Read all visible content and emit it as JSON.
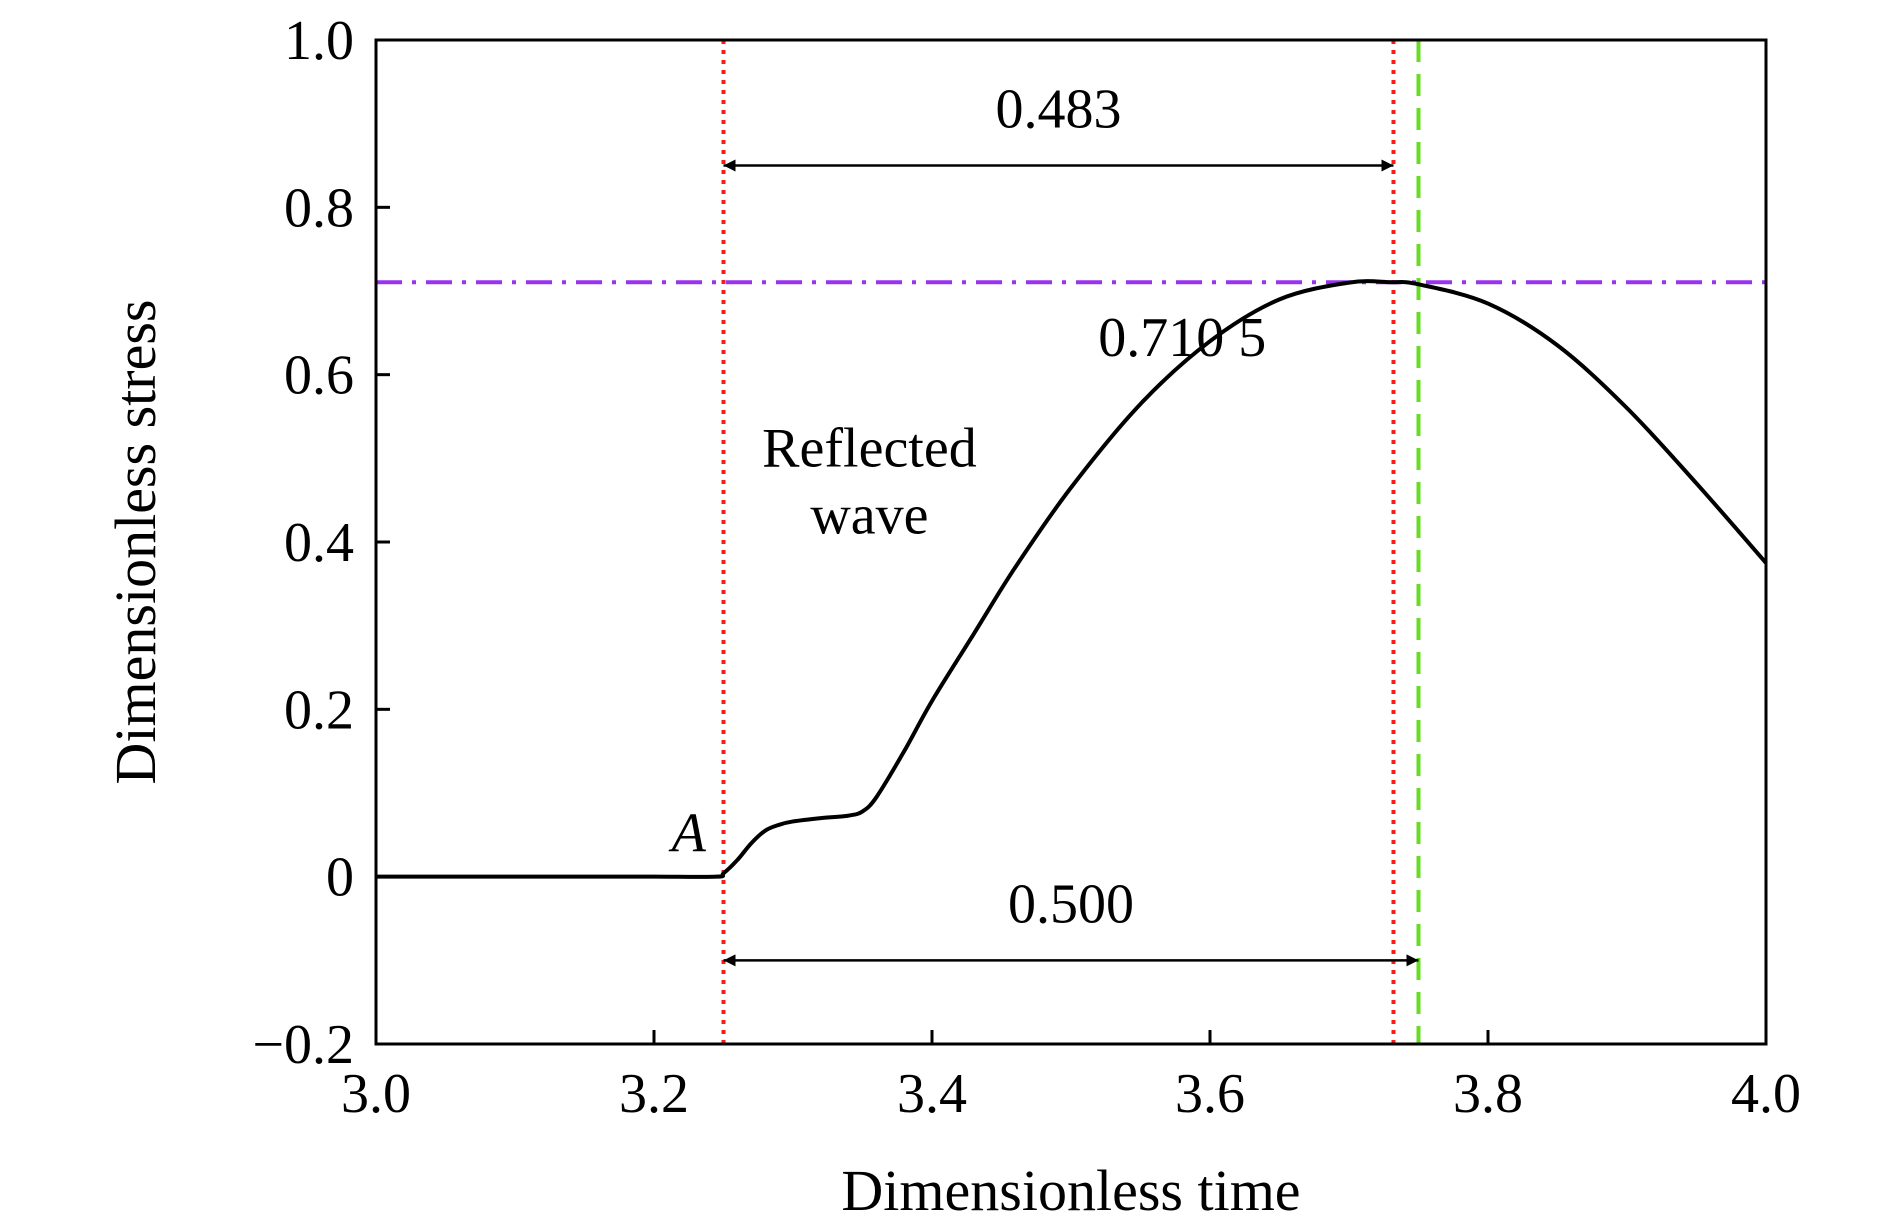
{
  "chart_data": {
    "type": "line",
    "xlabel": "Dimensionless time",
    "ylabel": "Dimensionless stress",
    "xlim": [
      3.0,
      4.0
    ],
    "ylim": [
      -0.2,
      1.0
    ],
    "xticks": [
      3.0,
      3.2,
      3.4,
      3.6,
      3.8,
      4.0
    ],
    "xtick_labels": [
      "3.0",
      "3.2",
      "3.4",
      "3.6",
      "3.8",
      "4.0"
    ],
    "yticks": [
      -0.2,
      0,
      0.2,
      0.4,
      0.6,
      0.8,
      1.0
    ],
    "ytick_labels": [
      "−0.2",
      "0",
      "0.2",
      "0.4",
      "0.6",
      "0.8",
      "1.0"
    ],
    "grid": false,
    "series": [
      {
        "color": "#000000",
        "x": [
          3.0,
          3.05,
          3.1,
          3.15,
          3.2,
          3.245,
          3.25,
          3.26,
          3.27,
          3.28,
          3.29,
          3.3,
          3.32,
          3.34,
          3.35,
          3.36,
          3.38,
          3.4,
          3.43,
          3.46,
          3.5,
          3.55,
          3.6,
          3.65,
          3.7,
          3.73,
          3.75,
          3.8,
          3.85,
          3.9,
          3.95,
          4.0
        ],
        "y": [
          0,
          0,
          0,
          0,
          0,
          0,
          0.004,
          0.02,
          0.04,
          0.055,
          0.062,
          0.066,
          0.07,
          0.073,
          0.078,
          0.095,
          0.15,
          0.21,
          0.29,
          0.37,
          0.465,
          0.565,
          0.64,
          0.69,
          0.71,
          0.7105,
          0.708,
          0.685,
          0.635,
          0.56,
          0.47,
          0.375
        ]
      }
    ],
    "reference_lines": [
      {
        "orientation": "vertical",
        "x": 3.25,
        "color": "#ff1a1a",
        "style": "dotted"
      },
      {
        "orientation": "vertical",
        "x": 3.732,
        "color": "#ff1a1a",
        "style": "dotted"
      },
      {
        "orientation": "vertical",
        "x": 3.75,
        "color": "#66dd22",
        "style": "dashed"
      },
      {
        "orientation": "horizontal",
        "y": 0.7105,
        "color": "#9933ee",
        "style": "dashdot"
      }
    ],
    "annotations": {
      "peak_value": "0.710 5",
      "span_top": "0.483",
      "span_bottom": "0.500",
      "wave_line1": "Reflected",
      "wave_line2": "wave",
      "point_label": "A"
    },
    "spans": [
      {
        "x_from": 3.25,
        "x_to": 3.732,
        "y": 0.85
      },
      {
        "x_from": 3.25,
        "x_to": 3.75,
        "y": -0.1
      }
    ]
  }
}
